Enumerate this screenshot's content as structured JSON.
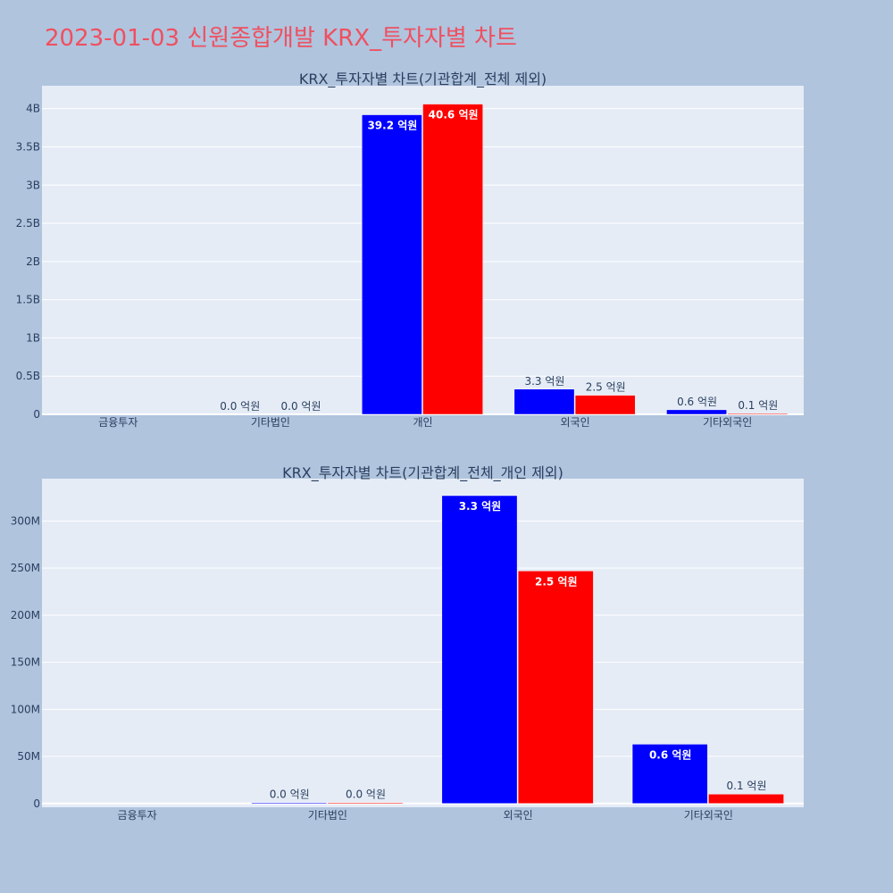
{
  "title": "2023-01-03 신원종합개발 KRX_투자자별 차트",
  "colors": {
    "background": "#b0c4de",
    "plot_bg": "#e5ecf6",
    "title": "#ef5060",
    "series_a": "#0000ff",
    "series_b": "#ff0000",
    "text": "#2a3f5f"
  },
  "chart_data": [
    {
      "type": "bar",
      "title": "KRX_투자자별 차트(기관합계_전체 제외)",
      "categories": [
        "금융투자",
        "기타법인",
        "개인",
        "외국인",
        "기타외국인"
      ],
      "ylim": [
        0,
        4300000000
      ],
      "yticks": [
        0,
        500000000,
        1000000000,
        1500000000,
        2000000000,
        2500000000,
        3000000000,
        3500000000,
        4000000000
      ],
      "yticklabels": [
        "0",
        "0.5B",
        "1B",
        "1.5B",
        "2B",
        "2.5B",
        "3B",
        "3.5B",
        "4B"
      ],
      "grid": true,
      "series": [
        {
          "color": "#0000ff",
          "values": [
            0,
            0,
            3920000000,
            330000000,
            60000000
          ],
          "labels": [
            "",
            "0.0 억원",
            "39.2 억원",
            "3.3 억원",
            "0.6 억원"
          ]
        },
        {
          "color": "#ff0000",
          "values": [
            0,
            0,
            4060000000,
            250000000,
            10000000
          ],
          "labels": [
            "",
            "0.0 억원",
            "40.6 억원",
            "2.5 억원",
            "0.1 억원"
          ]
        }
      ]
    },
    {
      "type": "bar",
      "title": "KRX_투자자별 차트(기관합계_전체_개인 제외)",
      "categories": [
        "금융투자",
        "기타법인",
        "외국인",
        "기타외국인"
      ],
      "ylim": [
        -4000000,
        345000000
      ],
      "yticks": [
        0,
        50000000,
        100000000,
        150000000,
        200000000,
        250000000,
        300000000
      ],
      "yticklabels": [
        "0",
        "50M",
        "100M",
        "150M",
        "200M",
        "250M",
        "300M"
      ],
      "grid": true,
      "series": [
        {
          "color": "#0000ff",
          "values": [
            0,
            1000000,
            327000000,
            63000000
          ],
          "labels": [
            "",
            "0.0 억원",
            "3.3 억원",
            "0.6 억원"
          ]
        },
        {
          "color": "#ff0000",
          "values": [
            0,
            1000000,
            247000000,
            10000000
          ],
          "labels": [
            "",
            "0.0 억원",
            "2.5 억원",
            "0.1 억원"
          ]
        }
      ]
    }
  ]
}
